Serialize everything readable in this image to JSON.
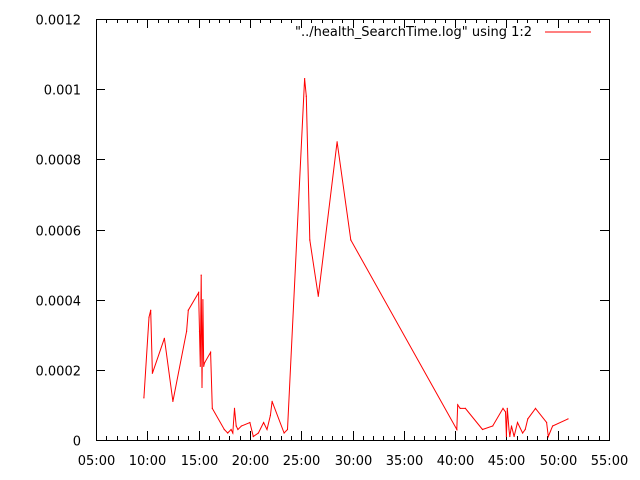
{
  "chart_data": {
    "type": "line",
    "title": "",
    "xlabel": "",
    "ylabel": "",
    "xlim": [
      "05:00",
      "55:00"
    ],
    "ylim": [
      0,
      0.0012
    ],
    "grid": false,
    "legend_position": "top-right",
    "x_ticks": [
      "05:00",
      "10:00",
      "15:00",
      "20:00",
      "25:00",
      "30:00",
      "35:00",
      "40:00",
      "45:00",
      "50:00",
      "55:00"
    ],
    "y_ticks": [
      "0",
      "0.0002",
      "0.0004",
      "0.0006",
      "0.0008",
      "0.001",
      "0.0012"
    ],
    "series": [
      {
        "name": "\"../health_SearchTime.log\" using 1:2",
        "color": "#ff0000",
        "x": [
          "09:40",
          "10:10",
          "10:20",
          "10:30",
          "11:40",
          "12:30",
          "13:50",
          "14:00",
          "15:00",
          "15:05",
          "15:10",
          "15:15",
          "15:20",
          "15:25",
          "15:30",
          "15:35",
          "16:10",
          "16:20",
          "17:30",
          "17:50",
          "18:10",
          "18:20",
          "18:30",
          "18:40",
          "18:50",
          "19:10",
          "20:00",
          "20:20",
          "20:50",
          "21:20",
          "21:40",
          "22:00",
          "22:10",
          "23:20",
          "23:40",
          "25:20",
          "25:30",
          "25:50",
          "26:40",
          "28:30",
          "29:50",
          "40:10",
          "40:15",
          "40:30",
          "41:00",
          "42:40",
          "43:40",
          "44:40",
          "44:55",
          "45:00",
          "45:05",
          "45:15",
          "45:20",
          "45:30",
          "45:45",
          "46:05",
          "46:35",
          "46:50",
          "47:05",
          "47:50",
          "48:55",
          "49:05",
          "49:30",
          "51:00"
        ],
        "values": [
          0.00012,
          0.00035,
          0.00037,
          0.00019,
          0.00029,
          0.00011,
          0.00031,
          0.00037,
          0.00042,
          0.00031,
          0.00021,
          0.00047,
          0.00015,
          0.0004,
          0.00021,
          0.00022,
          0.00025,
          9e-05,
          3e-05,
          2e-05,
          3e-05,
          2e-05,
          9e-05,
          4e-05,
          3e-05,
          4e-05,
          5e-05,
          1e-05,
          2e-05,
          5e-05,
          3e-05,
          7e-05,
          0.00011,
          2e-05,
          3e-05,
          0.00103,
          0.00098,
          0.00057,
          0.00041,
          0.00085,
          0.00057,
          3e-05,
          0.0001,
          9e-05,
          9e-05,
          3e-05,
          4e-05,
          9e-05,
          8e-05,
          1e-05,
          9e-05,
          3e-05,
          1e-05,
          4e-05,
          1e-05,
          5e-05,
          2e-05,
          3e-05,
          6e-05,
          9e-05,
          5e-05,
          1e-05,
          4e-05,
          6e-05
        ]
      }
    ]
  }
}
